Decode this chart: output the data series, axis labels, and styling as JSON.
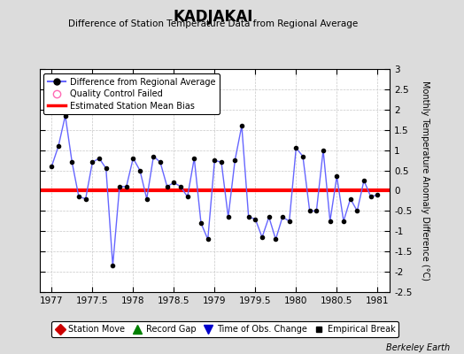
{
  "title": "KADJAKAI",
  "subtitle": "Difference of Station Temperature Data from Regional Average",
  "ylabel": "Monthly Temperature Anomaly Difference (°C)",
  "xlim": [
    1976.85,
    1981.15
  ],
  "ylim": [
    -2.5,
    3.0
  ],
  "yticks": [
    -2.5,
    -2,
    -1.5,
    -1,
    -0.5,
    0,
    0.5,
    1,
    1.5,
    2,
    2.5,
    3
  ],
  "xticks": [
    1977,
    1977.5,
    1978,
    1978.5,
    1979,
    1979.5,
    1980,
    1980.5,
    1981
  ],
  "xtick_labels": [
    "1977",
    "1977.5",
    "1978",
    "1978.5",
    "1979",
    "1979.5",
    "1980",
    "1980.5",
    "1981"
  ],
  "bias_value": 0.0,
  "line_color": "#6666FF",
  "bias_color": "#FF0000",
  "marker_color": "#000000",
  "background_color": "#DCDCDC",
  "plot_bg_color": "#FFFFFF",
  "berkeley_earth_text": "Berkeley Earth",
  "x_data": [
    1977.0,
    1977.083,
    1977.167,
    1977.25,
    1977.333,
    1977.417,
    1977.5,
    1977.583,
    1977.667,
    1977.75,
    1977.833,
    1977.917,
    1978.0,
    1978.083,
    1978.167,
    1978.25,
    1978.333,
    1978.417,
    1978.5,
    1978.583,
    1978.667,
    1978.75,
    1978.833,
    1978.917,
    1979.0,
    1979.083,
    1979.167,
    1979.25,
    1979.333,
    1979.417,
    1979.5,
    1979.583,
    1979.667,
    1979.75,
    1979.833,
    1979.917,
    1980.0,
    1980.083,
    1980.167,
    1980.25,
    1980.333,
    1980.417,
    1980.5,
    1980.583,
    1980.667,
    1980.75,
    1980.833,
    1980.917,
    1981.0
  ],
  "y_data": [
    0.6,
    1.1,
    1.85,
    0.7,
    -0.15,
    -0.2,
    0.7,
    0.8,
    0.55,
    -1.85,
    0.1,
    0.1,
    0.8,
    0.5,
    -0.2,
    0.85,
    0.7,
    0.1,
    0.2,
    0.1,
    -0.15,
    0.8,
    -0.8,
    -1.2,
    0.75,
    0.7,
    -0.65,
    0.75,
    1.6,
    -0.65,
    -0.7,
    -1.15,
    -0.65,
    -1.2,
    -0.65,
    -0.75,
    1.05,
    0.85,
    -0.5,
    -0.5,
    1.0,
    -0.75,
    0.35,
    -0.75,
    -0.2,
    -0.5,
    0.25,
    -0.15,
    -0.1
  ]
}
